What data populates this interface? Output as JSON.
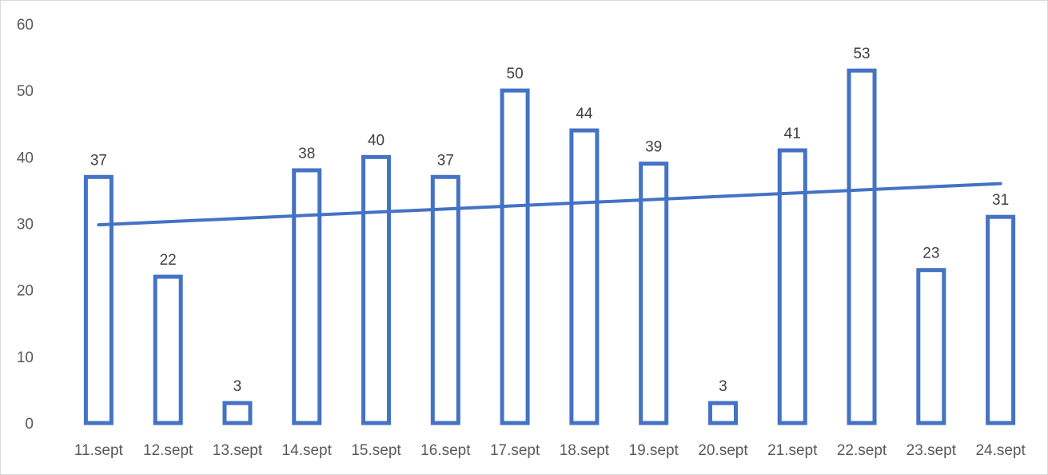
{
  "chart_data": {
    "type": "bar",
    "categories": [
      "11.sept",
      "12.sept",
      "13.sept",
      "14.sept",
      "15.sept",
      "16.sept",
      "17.sept",
      "18.sept",
      "19.sept",
      "20.sept",
      "21.sept",
      "22.sept",
      "23.sept",
      "24.sept"
    ],
    "series": [
      {
        "values": [
          37,
          22,
          3,
          38,
          40,
          37,
          50,
          44,
          39,
          3,
          41,
          53,
          23,
          31
        ],
        "style": "outlined bars",
        "data_labels": true
      }
    ],
    "trendline": {
      "type": "linear",
      "start_value": 29.8,
      "end_value": 36.0
    },
    "yticks": [
      0,
      10,
      20,
      30,
      40,
      50,
      60
    ],
    "ylim": [
      0,
      60
    ],
    "title": "",
    "xlabel": "",
    "ylabel": "",
    "grid": false,
    "legend": "none",
    "colors": {
      "bar_outline": "#4472C4",
      "trendline": "#4472C4",
      "tick_text": "#595959",
      "label_text": "#404040",
      "frame": "#D9D9D9"
    }
  }
}
